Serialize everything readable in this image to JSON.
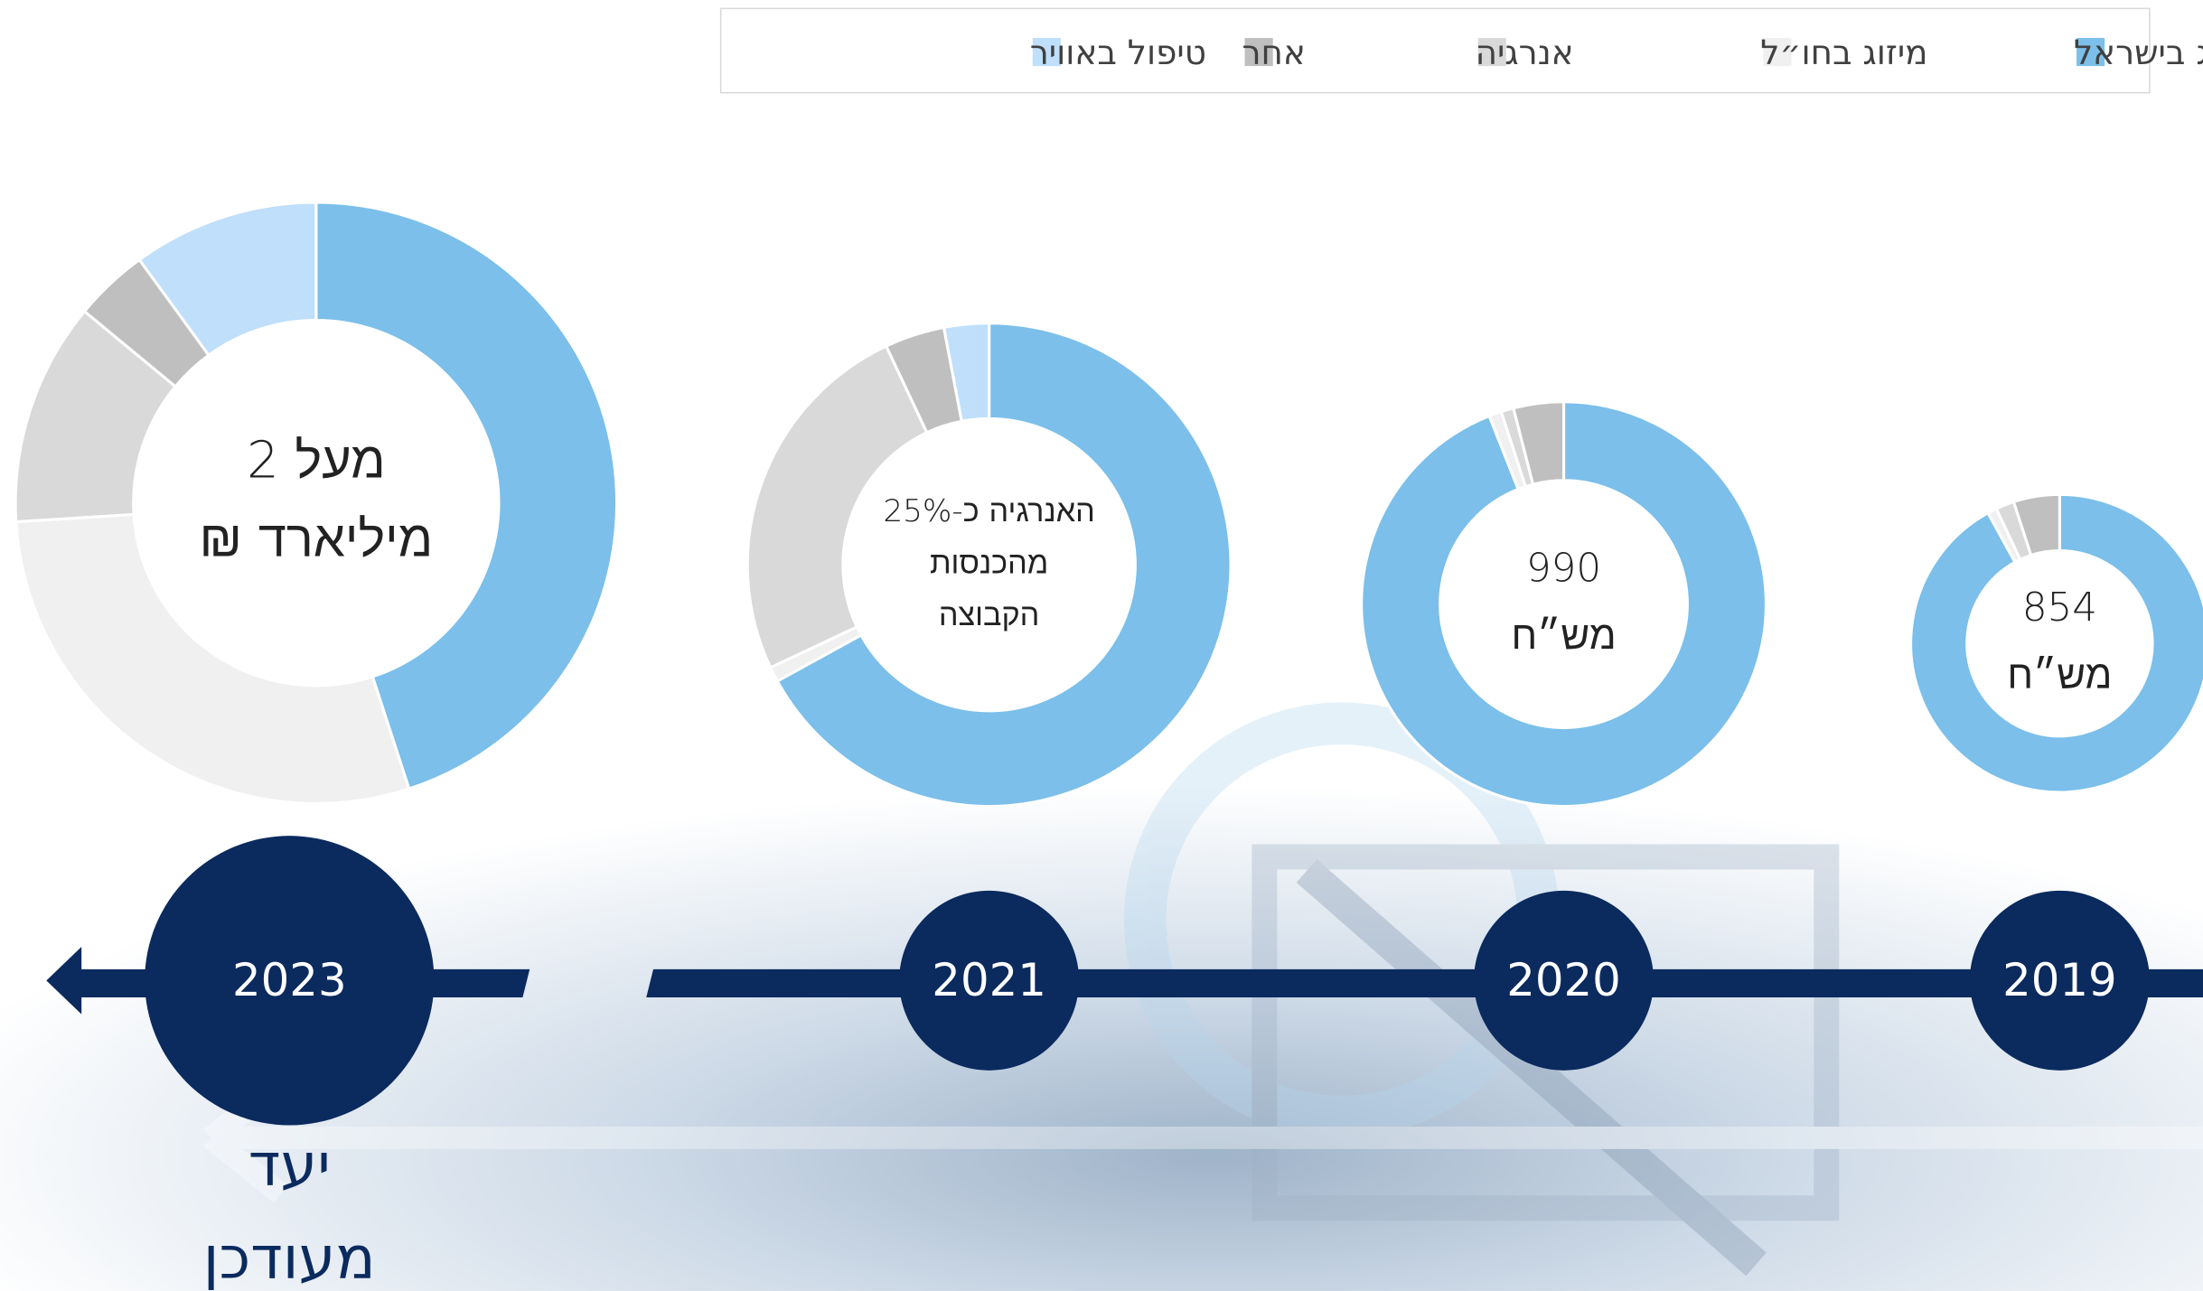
{
  "legend": [
    {
      "name": "מיזוג בישראל",
      "color": "#7bbfea"
    },
    {
      "name": "מיזוג בחו״ל",
      "color": "#f0f0f0"
    },
    {
      "name": "אנרגיה",
      "color": "#d9d9d9"
    },
    {
      "name": "אחר",
      "color": "#bfbfbf"
    },
    {
      "name": "טיפול באוויר",
      "color": "#bfdffb"
    }
  ],
  "chart_data": [
    {
      "type": "pie",
      "title": "2023",
      "values": [
        45,
        29,
        12,
        4,
        10
      ],
      "center_text": [
        "מעל 2",
        "מיליארד ₪"
      ],
      "annotation": [
        "יעד",
        "מעודכן"
      ]
    },
    {
      "type": "pie",
      "title": "2021",
      "values": [
        67,
        1,
        25,
        4,
        3
      ],
      "center_text": [
        "האנרגיה כ-25%",
        "מהכנסות",
        "הקבוצה"
      ]
    },
    {
      "type": "pie",
      "title": "2020",
      "values": [
        94,
        1,
        1,
        4,
        0
      ],
      "center_text": [
        "990",
        "מש״ח"
      ]
    },
    {
      "type": "pie",
      "title": "2019",
      "values": [
        92,
        1,
        2,
        5,
        0
      ],
      "center_text": [
        "854",
        "מש״ח"
      ]
    }
  ]
}
